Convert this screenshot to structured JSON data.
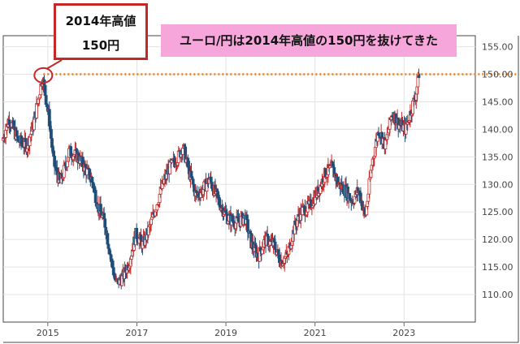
{
  "annotations": {
    "callout_line1": "2014年高値",
    "callout_line2": "150円",
    "headline": "ユーロ/円は2014年高値の150円を抜けてきた"
  },
  "chart_data": {
    "type": "candlestick",
    "title": "",
    "xlabel": "",
    "ylabel": "",
    "x_range": [
      2014.0,
      2024.6
    ],
    "ylim": [
      105,
      157
    ],
    "yticks": [
      "110.00",
      "115.00",
      "120.00",
      "125.00",
      "130.00",
      "135.00",
      "140.00",
      "145.00",
      "150.00",
      "155.00"
    ],
    "xticks": [
      {
        "label": "2015",
        "x": 2015
      },
      {
        "label": "2017",
        "x": 2017
      },
      {
        "label": "2019",
        "x": 2019
      },
      {
        "label": "2021",
        "x": 2021
      },
      {
        "label": "2023",
        "x": 2023
      }
    ],
    "reference_line": {
      "y": 150,
      "color": "#e67e22",
      "style": "dotted"
    },
    "highlight_circle": {
      "x": 2014.9,
      "y": 149.8
    },
    "colors": {
      "up": "#c62828",
      "down": "#1f4e79"
    },
    "path": [
      [
        2014.0,
        138
      ],
      [
        2014.15,
        142
      ],
      [
        2014.35,
        138
      ],
      [
        2014.55,
        137
      ],
      [
        2014.7,
        141
      ],
      [
        2014.9,
        149.5
      ],
      [
        2015.05,
        142
      ],
      [
        2015.15,
        134
      ],
      [
        2015.3,
        130
      ],
      [
        2015.5,
        136
      ],
      [
        2015.7,
        135
      ],
      [
        2015.85,
        133
      ],
      [
        2016.0,
        131
      ],
      [
        2016.15,
        126
      ],
      [
        2016.3,
        123
      ],
      [
        2016.45,
        116
      ],
      [
        2016.55,
        112
      ],
      [
        2016.7,
        113
      ],
      [
        2016.85,
        116
      ],
      [
        2017.0,
        121
      ],
      [
        2017.15,
        119
      ],
      [
        2017.3,
        122
      ],
      [
        2017.45,
        126
      ],
      [
        2017.6,
        130
      ],
      [
        2017.75,
        133
      ],
      [
        2017.95,
        135
      ],
      [
        2018.05,
        137
      ],
      [
        2018.2,
        132
      ],
      [
        2018.35,
        128
      ],
      [
        2018.5,
        129
      ],
      [
        2018.65,
        131
      ],
      [
        2018.85,
        127
      ],
      [
        2019.05,
        124
      ],
      [
        2019.25,
        123
      ],
      [
        2019.45,
        124
      ],
      [
        2019.6,
        119
      ],
      [
        2019.75,
        117
      ],
      [
        2019.9,
        120
      ],
      [
        2020.1,
        119
      ],
      [
        2020.25,
        116
      ],
      [
        2020.4,
        117
      ],
      [
        2020.55,
        122
      ],
      [
        2020.7,
        125
      ],
      [
        2020.9,
        126
      ],
      [
        2021.1,
        129
      ],
      [
        2021.25,
        132
      ],
      [
        2021.4,
        133
      ],
      [
        2021.55,
        130
      ],
      [
        2021.7,
        129
      ],
      [
        2021.85,
        127
      ],
      [
        2022.0,
        129
      ],
      [
        2022.15,
        124
      ],
      [
        2022.3,
        134
      ],
      [
        2022.45,
        140
      ],
      [
        2022.6,
        137
      ],
      [
        2022.75,
        143
      ],
      [
        2022.9,
        141
      ],
      [
        2023.05,
        140
      ],
      [
        2023.2,
        144
      ],
      [
        2023.3,
        147
      ],
      [
        2023.35,
        150.2
      ]
    ]
  }
}
